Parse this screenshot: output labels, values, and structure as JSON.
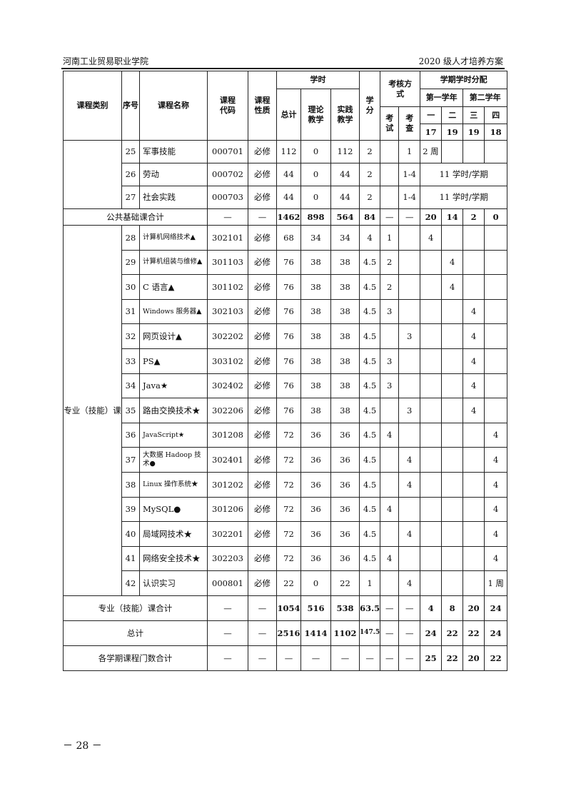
{
  "header": {
    "left": "河南工业贸易职业学院",
    "right": "2020 级人才培养方案"
  },
  "table_head": {
    "category": "课程类别",
    "seq": "序号",
    "name": "课程名称",
    "code": "课程代码",
    "nature": "课程性质",
    "hours": "学时",
    "total": "总计",
    "theory": "理论教学",
    "practice": "实践教学",
    "credit": "学分",
    "assess": "考核方式",
    "exam": "考试",
    "check": "考查",
    "dist": "学期学时分配",
    "year1": "第一学年",
    "year2": "第二学年",
    "sems": [
      "一",
      "二",
      "三",
      "四"
    ],
    "weeks": [
      "17",
      "19",
      "19",
      "18"
    ]
  },
  "public_rows": [
    {
      "seq": "25",
      "name": "军事技能",
      "code": "000701",
      "nature": "必修",
      "total": "112",
      "theory": "0",
      "practice": "112",
      "credit": "2",
      "exam": "",
      "check": "1",
      "sems": [
        "2 周",
        "",
        "",
        ""
      ]
    },
    {
      "seq": "26",
      "name": "劳动",
      "code": "000702",
      "nature": "必修",
      "total": "44",
      "theory": "0",
      "practice": "44",
      "credit": "2",
      "exam": "",
      "check": "1-4",
      "span": "11 学时/学期"
    },
    {
      "seq": "27",
      "name": "社会实践",
      "code": "000703",
      "nature": "必修",
      "total": "44",
      "theory": "0",
      "practice": "44",
      "credit": "2",
      "exam": "",
      "check": "1-4",
      "span": "11 学时/学期"
    }
  ],
  "public_sum": {
    "label": "公共基础课合计",
    "vals": [
      "—",
      "—",
      "1462",
      "898",
      "564",
      "84",
      "—",
      "—",
      "20",
      "14",
      "2",
      "0"
    ]
  },
  "pro_category": "专业（技能）课",
  "pro_rows": [
    {
      "seq": "28",
      "name": "计算机网络技术▲",
      "code": "302101",
      "nature": "必修",
      "total": "68",
      "theory": "34",
      "practice": "34",
      "credit": "4",
      "exam": "1",
      "check": "",
      "sems": [
        "4",
        "",
        "",
        ""
      ]
    },
    {
      "seq": "29",
      "name": "计算机组装与维修▲",
      "code": "301103",
      "nature": "必修",
      "total": "76",
      "theory": "38",
      "practice": "38",
      "credit": "4.5",
      "exam": "2",
      "check": "",
      "sems": [
        "",
        "4",
        "",
        ""
      ]
    },
    {
      "seq": "30",
      "name": "C 语言▲",
      "code": "301102",
      "nature": "必修",
      "total": "76",
      "theory": "38",
      "practice": "38",
      "credit": "4.5",
      "exam": "2",
      "check": "",
      "sems": [
        "",
        "4",
        "",
        ""
      ]
    },
    {
      "seq": "31",
      "name": "Windows 服务器▲",
      "code": "302103",
      "nature": "必修",
      "total": "76",
      "theory": "38",
      "practice": "38",
      "credit": "4.5",
      "exam": "3",
      "check": "",
      "sems": [
        "",
        "",
        "4",
        ""
      ]
    },
    {
      "seq": "32",
      "name": "网页设计▲",
      "code": "302202",
      "nature": "必修",
      "total": "76",
      "theory": "38",
      "practice": "38",
      "credit": "4.5",
      "exam": "",
      "check": "3",
      "sems": [
        "",
        "",
        "4",
        ""
      ]
    },
    {
      "seq": "33",
      "name": "PS▲",
      "code": "303102",
      "nature": "必修",
      "total": "76",
      "theory": "38",
      "practice": "38",
      "credit": "4.5",
      "exam": "3",
      "check": "",
      "sems": [
        "",
        "",
        "4",
        ""
      ]
    },
    {
      "seq": "34",
      "name": "Java★",
      "code": "302402",
      "nature": "必修",
      "total": "76",
      "theory": "38",
      "practice": "38",
      "credit": "4.5",
      "exam": "3",
      "check": "",
      "sems": [
        "",
        "",
        "4",
        ""
      ]
    },
    {
      "seq": "35",
      "name": "路由交换技术★",
      "code": "302206",
      "nature": "必修",
      "total": "76",
      "theory": "38",
      "practice": "38",
      "credit": "4.5",
      "exam": "",
      "check": "3",
      "sems": [
        "",
        "",
        "4",
        ""
      ]
    },
    {
      "seq": "36",
      "name": "JavaScript★",
      "code": "301208",
      "nature": "必修",
      "total": "72",
      "theory": "36",
      "practice": "36",
      "credit": "4.5",
      "exam": "4",
      "check": "",
      "sems": [
        "",
        "",
        "",
        "4"
      ]
    },
    {
      "seq": "37",
      "name": "大数据 Hadoop 技术●",
      "code": "302401",
      "nature": "必修",
      "total": "72",
      "theory": "36",
      "practice": "36",
      "credit": "4.5",
      "exam": "",
      "check": "4",
      "sems": [
        "",
        "",
        "",
        "4"
      ]
    },
    {
      "seq": "38",
      "name": "Linux 操作系统★",
      "code": "301202",
      "nature": "必修",
      "total": "72",
      "theory": "36",
      "practice": "36",
      "credit": "4.5",
      "exam": "",
      "check": "4",
      "sems": [
        "",
        "",
        "",
        "4"
      ]
    },
    {
      "seq": "39",
      "name": "MySQL●",
      "code": "301206",
      "nature": "必修",
      "total": "72",
      "theory": "36",
      "practice": "36",
      "credit": "4.5",
      "exam": "4",
      "check": "",
      "sems": [
        "",
        "",
        "",
        "4"
      ]
    },
    {
      "seq": "40",
      "name": "局域网技术★",
      "code": "302201",
      "nature": "必修",
      "total": "72",
      "theory": "36",
      "practice": "36",
      "credit": "4.5",
      "exam": "",
      "check": "4",
      "sems": [
        "",
        "",
        "",
        "4"
      ]
    },
    {
      "seq": "41",
      "name": "网络安全技术★",
      "code": "302203",
      "nature": "必修",
      "total": "72",
      "theory": "36",
      "practice": "36",
      "credit": "4.5",
      "exam": "4",
      "check": "",
      "sems": [
        "",
        "",
        "",
        "4"
      ]
    },
    {
      "seq": "42",
      "name": "认识实习",
      "code": "000801",
      "nature": "必修",
      "total": "22",
      "theory": "0",
      "practice": "22",
      "credit": "1",
      "exam": "",
      "check": "4",
      "sems": [
        "",
        "",
        "",
        "1 周"
      ]
    }
  ],
  "summary_rows": [
    {
      "label": "专业（技能）课合计",
      "vals": [
        "—",
        "—",
        "1054",
        "516",
        "538",
        "63.5",
        "—",
        "—",
        "4",
        "8",
        "20",
        "24"
      ]
    },
    {
      "label": "总计",
      "vals": [
        "—",
        "—",
        "2516",
        "1414",
        "1102",
        "147.5",
        "—",
        "—",
        "24",
        "22",
        "22",
        "24"
      ]
    },
    {
      "label": "各学期课程门数合计",
      "vals": [
        "—",
        "—",
        "—",
        "—",
        "—",
        "—",
        "—",
        "—",
        "25",
        "22",
        "20",
        "22"
      ]
    }
  ],
  "footer": {
    "page": "－ 28 －"
  }
}
